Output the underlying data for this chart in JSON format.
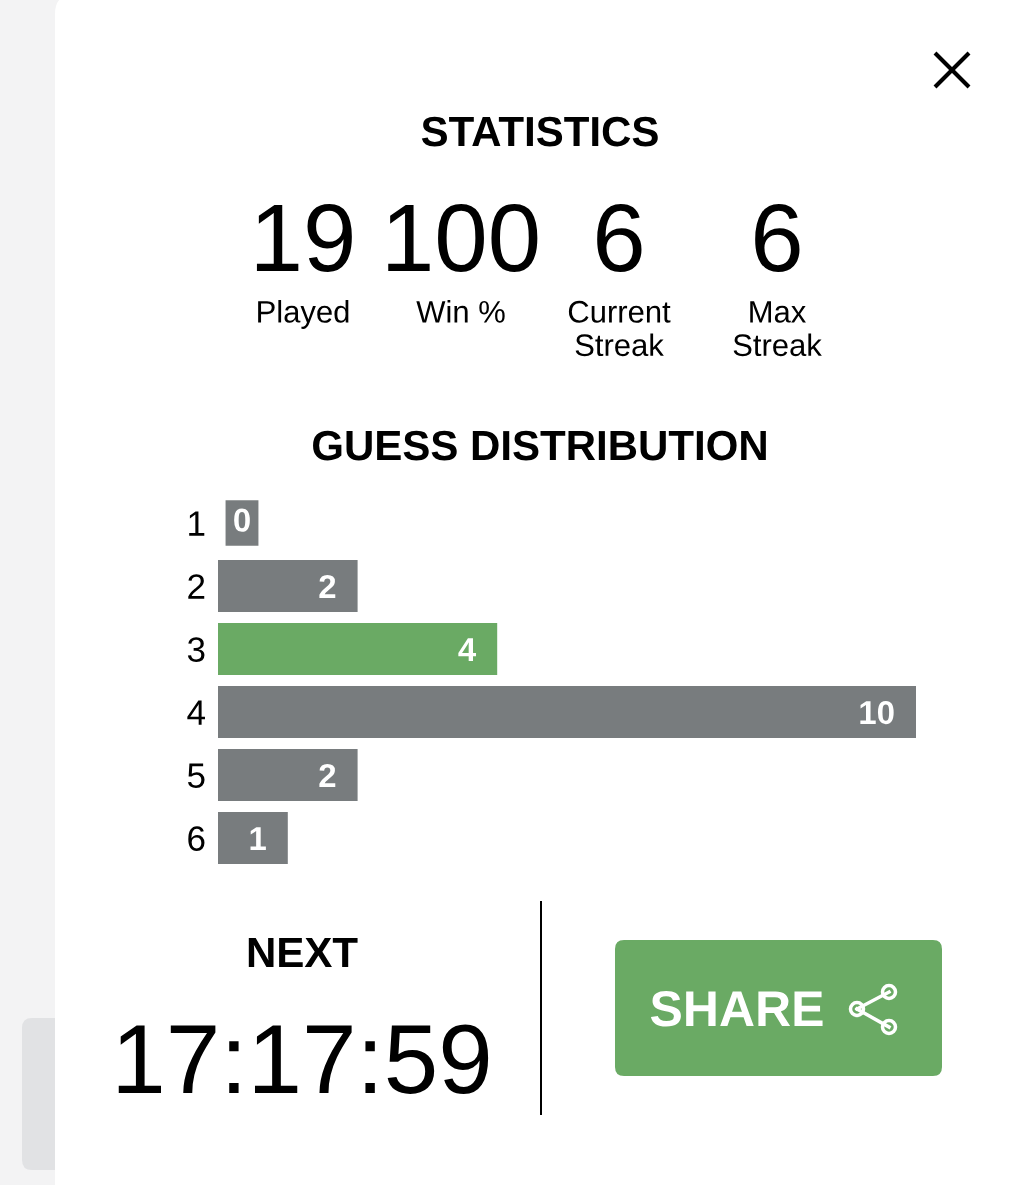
{
  "chart_data": [
    {
      "type": "other",
      "title": "STATISTICS",
      "categories": [
        "Played",
        "Win %",
        "Current\nStreak",
        "Max\nStreak"
      ],
      "values": [
        19,
        100,
        6,
        6
      ],
      "data_labels": true
    },
    {
      "type": "bar",
      "orientation": "horizontal",
      "title": "GUESS DISTRIBUTION",
      "categories": [
        "1",
        "2",
        "3",
        "4",
        "5",
        "6"
      ],
      "values": [
        0,
        2,
        4,
        10,
        2,
        1
      ],
      "colors": [
        "#787c7e",
        "#787c7e",
        "#6aaa64",
        "#787c7e",
        "#787c7e",
        "#787c7e"
      ],
      "data_labels": true,
      "tick_labels": "y"
    },
    {
      "type": "other",
      "title": "NEXT",
      "annotations": [
        "17:17:59",
        "SHARE"
      ]
    }
  ]
}
